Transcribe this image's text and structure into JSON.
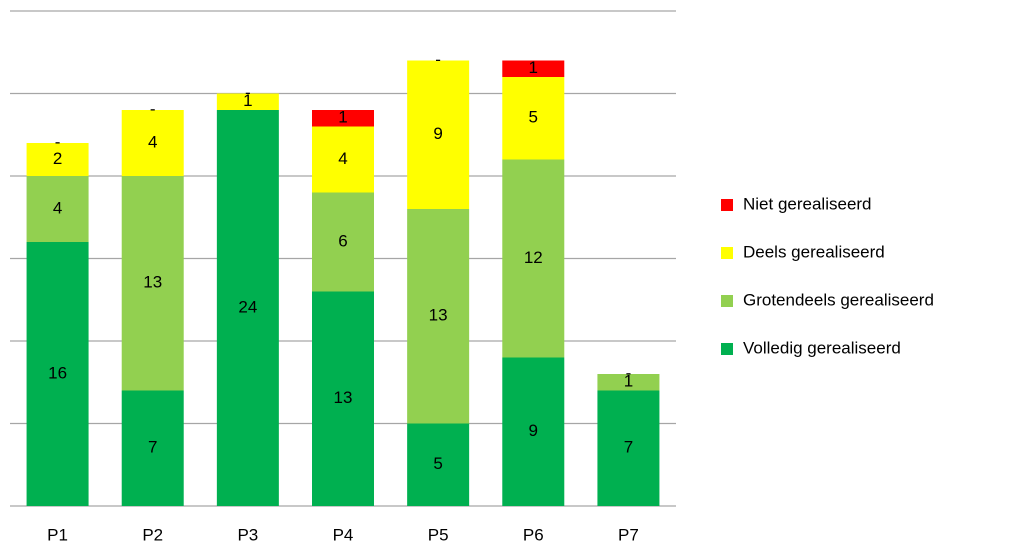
{
  "chart_data": {
    "type": "bar",
    "stacked": true,
    "legend": "right",
    "grid": true,
    "categories": [
      "P1",
      "P2",
      "P3",
      "P4",
      "P5",
      "P6",
      "P7"
    ],
    "ylim": [
      0,
      30
    ],
    "yticks": [
      0,
      5,
      10,
      15,
      20,
      25,
      30
    ],
    "series": [
      {
        "name": "Volledig gerealiseerd",
        "color": "#00b050",
        "values": [
          16,
          7,
          24,
          13,
          5,
          9,
          7
        ],
        "value_labels": [
          "16",
          "7",
          "24",
          "13",
          "5",
          "9",
          "7"
        ]
      },
      {
        "name": "Grotendeels gerealiseerd",
        "color": "#92d050",
        "values": [
          4,
          13,
          0,
          6,
          13,
          12,
          1
        ],
        "value_labels": [
          "4",
          "13",
          null,
          "6",
          "13",
          "12",
          "1"
        ]
      },
      {
        "name": "Deels gerealiseerd",
        "color": "#ffff00",
        "values": [
          2,
          4,
          1,
          4,
          9,
          5,
          0
        ],
        "value_labels": [
          "2",
          "4",
          "1",
          "4",
          "9",
          "5",
          "-"
        ]
      },
      {
        "name": "Niet gerealiseerd",
        "color": "#ff0000",
        "values": [
          0,
          0,
          0,
          1,
          0,
          1,
          0
        ],
        "value_labels": [
          "-",
          "-",
          "-",
          "1",
          "-",
          "1",
          null
        ]
      }
    ]
  }
}
